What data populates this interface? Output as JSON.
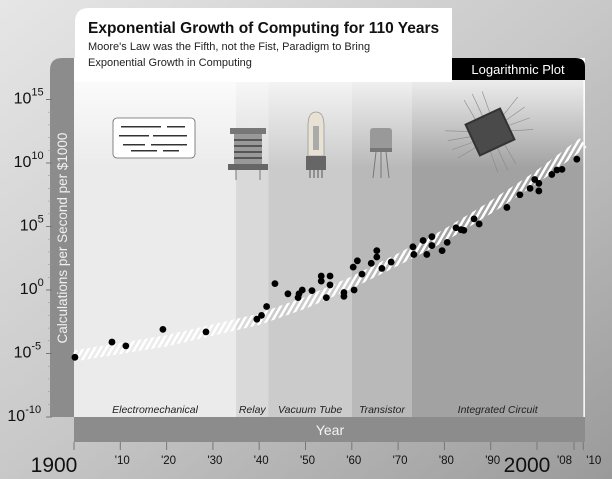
{
  "chart_data": {
    "type": "scatter",
    "title": "Exponential Growth of Computing for 110 Years",
    "subtitle_lines": [
      "Moore's Law was the Fifth, not the Fist, Paradigm to Bring",
      "Exponential Growth in Computing"
    ],
    "badge": "Logarithmic Plot",
    "xlabel": "Year",
    "ylabel": "Calculations per Second per $1000",
    "y_scale": "log",
    "xlim": [
      1900,
      2010
    ],
    "ylim_exponent": [
      -10,
      15
    ],
    "grid": false,
    "x_ticks": [
      {
        "value": 1900,
        "label": "1900",
        "major": true
      },
      {
        "value": 1910,
        "label": "'10"
      },
      {
        "value": 1920,
        "label": "'20"
      },
      {
        "value": 1930,
        "label": "'30"
      },
      {
        "value": 1940,
        "label": "'40"
      },
      {
        "value": 1950,
        "label": "'50"
      },
      {
        "value": 1960,
        "label": "'60"
      },
      {
        "value": 1970,
        "label": "'70"
      },
      {
        "value": 1980,
        "label": "'80"
      },
      {
        "value": 1990,
        "label": "'90"
      },
      {
        "value": 2000,
        "label": "2000",
        "major": true
      },
      {
        "value": 2008,
        "label": "'08"
      },
      {
        "value": 2010,
        "label": "'10"
      }
    ],
    "y_ticks": [
      {
        "base": "10",
        "exp": "15",
        "value": 15
      },
      {
        "base": "10",
        "exp": "10",
        "value": 10
      },
      {
        "base": "10",
        "exp": "5",
        "value": 5
      },
      {
        "base": "10",
        "exp": "0",
        "value": 0
      },
      {
        "base": "10",
        "exp": "-5",
        "value": -5
      },
      {
        "base": "10",
        "exp": "-10",
        "value": -10
      }
    ],
    "eras": [
      {
        "name": "Electromechanical",
        "start": 1900,
        "end": 1935,
        "color": "#ebebeb"
      },
      {
        "name": "Relay",
        "start": 1935,
        "end": 1942,
        "color": "#d9d9d9"
      },
      {
        "name": "Vacuum Tube",
        "start": 1942,
        "end": 1960,
        "color": "#cbcbcb"
      },
      {
        "name": "Transistor",
        "start": 1960,
        "end": 1973,
        "color": "#b9b9b9"
      },
      {
        "name": "Integrated Circuit",
        "start": 1973,
        "end": 2010,
        "color": "#a2a2a2"
      }
    ],
    "trend_log10": [
      [
        1900,
        -5.2
      ],
      [
        1920,
        -4.0
      ],
      [
        1940,
        -2.3
      ],
      [
        1950,
        -1.0
      ],
      [
        1960,
        0.6
      ],
      [
        1970,
        2.4
      ],
      [
        1980,
        4.3
      ],
      [
        1990,
        6.5
      ],
      [
        2000,
        8.9
      ],
      [
        2010,
        11.6
      ]
    ],
    "points_log10": [
      [
        1900.2,
        -5.3
      ],
      [
        1908.2,
        -4.1
      ],
      [
        1911.2,
        -4.4
      ],
      [
        1919.2,
        -3.1
      ],
      [
        1928.5,
        -3.3
      ],
      [
        1939.5,
        -2.3
      ],
      [
        1940.5,
        -2.0
      ],
      [
        1941.6,
        -1.3
      ],
      [
        1943.4,
        0.5
      ],
      [
        1946.2,
        -0.3
      ],
      [
        1948.4,
        -0.6
      ],
      [
        1948.6,
        -0.3
      ],
      [
        1949.3,
        0.0
      ],
      [
        1951.4,
        -0.05
      ],
      [
        1953.4,
        1.1
      ],
      [
        1953.4,
        0.7
      ],
      [
        1954.5,
        -0.6
      ],
      [
        1955.3,
        1.1
      ],
      [
        1955.3,
        0.4
      ],
      [
        1958.3,
        -0.2
      ],
      [
        1958.3,
        -0.5
      ],
      [
        1960.3,
        1.8
      ],
      [
        1960.5,
        0.0
      ],
      [
        1961.2,
        2.3
      ],
      [
        1962.2,
        1.25
      ],
      [
        1964.2,
        2.1
      ],
      [
        1965.4,
        2.6
      ],
      [
        1965.4,
        3.1
      ],
      [
        1966.5,
        1.7
      ],
      [
        1968.5,
        2.2
      ],
      [
        1973.2,
        3.4
      ],
      [
        1973.4,
        2.8
      ],
      [
        1975.4,
        3.9
      ],
      [
        1976.2,
        2.8
      ],
      [
        1977.3,
        4.2
      ],
      [
        1977.3,
        3.5
      ],
      [
        1979.5,
        3.1
      ],
      [
        1980.6,
        3.75
      ],
      [
        1982.5,
        4.9
      ],
      [
        1983.6,
        4.75
      ],
      [
        1984.2,
        4.7
      ],
      [
        1986.4,
        5.6
      ],
      [
        1987.5,
        5.2
      ],
      [
        1993.5,
        6.5
      ],
      [
        1996.3,
        7.5
      ],
      [
        1998.5,
        8.0
      ],
      [
        1999.5,
        8.7
      ],
      [
        2000.4,
        8.4
      ],
      [
        2000.4,
        7.8
      ],
      [
        2003.2,
        9.1
      ],
      [
        2004.3,
        9.45
      ],
      [
        2005.4,
        9.5
      ],
      [
        2008.6,
        10.3
      ]
    ],
    "icons": [
      "punched-card-icon",
      "relay-icon",
      "vacuum-tube-icon",
      "transistor-icon",
      "integrated-circuit-icon"
    ],
    "colors": {
      "point": "#000000",
      "trend": "#ffffff",
      "axis_bar": "#8c8c8c",
      "badge": "#000000"
    }
  }
}
